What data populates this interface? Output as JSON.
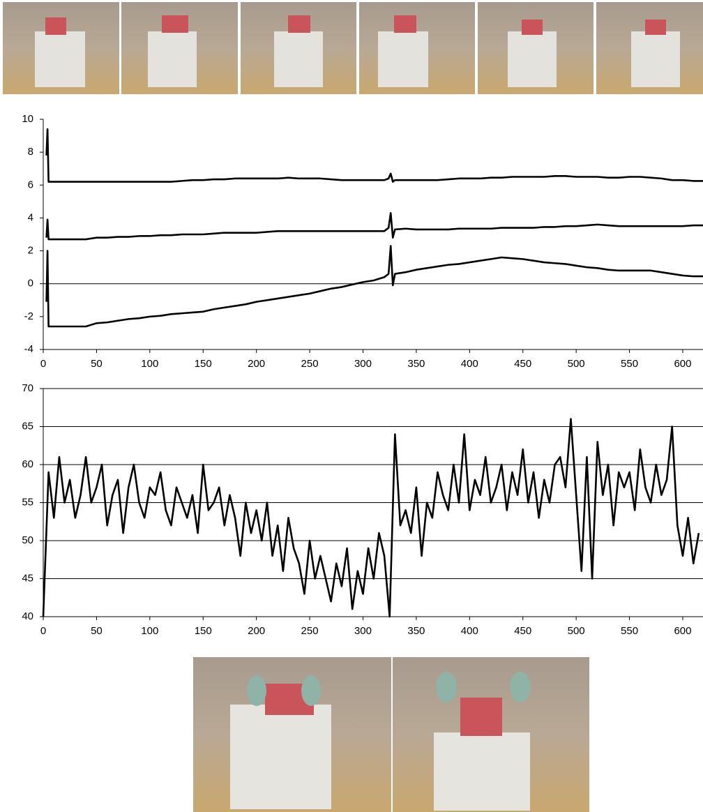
{
  "chart_data": [
    {
      "type": "line",
      "zero_line": true,
      "x": [
        3,
        4,
        5,
        6,
        10,
        20,
        30,
        40,
        50,
        60,
        70,
        80,
        90,
        100,
        110,
        120,
        130,
        140,
        150,
        160,
        170,
        180,
        190,
        200,
        210,
        220,
        230,
        240,
        250,
        260,
        270,
        280,
        290,
        300,
        310,
        320,
        324,
        326,
        328,
        330,
        340,
        350,
        360,
        370,
        380,
        390,
        400,
        410,
        420,
        430,
        440,
        450,
        460,
        470,
        480,
        490,
        500,
        510,
        520,
        530,
        540,
        550,
        560,
        570,
        580,
        590,
        600,
        610,
        619
      ],
      "series": [
        {
          "color": "#000000",
          "values": [
            7.8,
            9.4,
            6.2,
            6.2,
            6.2,
            6.2,
            6.2,
            6.2,
            6.2,
            6.2,
            6.2,
            6.2,
            6.2,
            6.2,
            6.2,
            6.2,
            6.25,
            6.3,
            6.3,
            6.35,
            6.35,
            6.4,
            6.4,
            6.4,
            6.4,
            6.4,
            6.45,
            6.4,
            6.4,
            6.4,
            6.35,
            6.3,
            6.3,
            6.3,
            6.3,
            6.3,
            6.4,
            6.7,
            6.2,
            6.3,
            6.3,
            6.3,
            6.3,
            6.3,
            6.35,
            6.4,
            6.4,
            6.4,
            6.45,
            6.45,
            6.5,
            6.5,
            6.5,
            6.5,
            6.55,
            6.55,
            6.5,
            6.5,
            6.5,
            6.45,
            6.45,
            6.5,
            6.5,
            6.45,
            6.4,
            6.3,
            6.3,
            6.25,
            6.25
          ]
        },
        {
          "color": "#000000",
          "values": [
            2.8,
            3.9,
            2.7,
            2.7,
            2.7,
            2.7,
            2.7,
            2.7,
            2.8,
            2.8,
            2.85,
            2.85,
            2.9,
            2.9,
            2.95,
            2.95,
            3.0,
            3.0,
            3.0,
            3.05,
            3.1,
            3.1,
            3.1,
            3.1,
            3.15,
            3.2,
            3.2,
            3.2,
            3.2,
            3.2,
            3.2,
            3.2,
            3.2,
            3.2,
            3.2,
            3.2,
            3.4,
            4.3,
            2.8,
            3.3,
            3.35,
            3.3,
            3.3,
            3.3,
            3.3,
            3.35,
            3.35,
            3.35,
            3.35,
            3.4,
            3.4,
            3.4,
            3.4,
            3.45,
            3.45,
            3.5,
            3.5,
            3.55,
            3.6,
            3.55,
            3.5,
            3.5,
            3.5,
            3.5,
            3.5,
            3.5,
            3.5,
            3.55,
            3.55
          ]
        },
        {
          "color": "#000000",
          "values": [
            -1.1,
            2.0,
            -2.6,
            -2.6,
            -2.6,
            -2.6,
            -2.6,
            -2.6,
            -2.4,
            -2.35,
            -2.25,
            -2.15,
            -2.1,
            -2.0,
            -1.95,
            -1.85,
            -1.8,
            -1.75,
            -1.7,
            -1.55,
            -1.45,
            -1.35,
            -1.25,
            -1.1,
            -1.0,
            -0.9,
            -0.8,
            -0.7,
            -0.6,
            -0.45,
            -0.3,
            -0.2,
            -0.05,
            0.1,
            0.2,
            0.4,
            0.6,
            2.3,
            -0.1,
            0.6,
            0.7,
            0.85,
            0.95,
            1.05,
            1.15,
            1.2,
            1.3,
            1.4,
            1.5,
            1.6,
            1.55,
            1.5,
            1.4,
            1.3,
            1.25,
            1.2,
            1.1,
            1.0,
            0.95,
            0.85,
            0.8,
            0.8,
            0.8,
            0.8,
            0.7,
            0.6,
            0.5,
            0.45,
            0.45
          ]
        }
      ],
      "xlim": [
        0,
        619
      ],
      "ylim": [
        -4,
        10
      ],
      "xticks": [
        0,
        50,
        100,
        150,
        200,
        250,
        300,
        350,
        400,
        450,
        500,
        550,
        600
      ],
      "yticks": [
        -4,
        -2,
        0,
        2,
        4,
        6,
        8,
        10
      ]
    },
    {
      "type": "line",
      "grid": true,
      "x": [
        0,
        5,
        10,
        15,
        20,
        25,
        30,
        35,
        40,
        45,
        50,
        55,
        60,
        65,
        70,
        75,
        80,
        85,
        90,
        95,
        100,
        105,
        110,
        115,
        120,
        125,
        130,
        135,
        140,
        145,
        150,
        155,
        160,
        165,
        170,
        175,
        180,
        185,
        190,
        195,
        200,
        205,
        210,
        215,
        220,
        225,
        230,
        235,
        240,
        245,
        250,
        255,
        260,
        265,
        270,
        275,
        280,
        285,
        290,
        295,
        300,
        305,
        310,
        315,
        320,
        325,
        330,
        335,
        340,
        345,
        350,
        355,
        360,
        365,
        370,
        375,
        380,
        385,
        390,
        395,
        400,
        405,
        410,
        415,
        420,
        425,
        430,
        435,
        440,
        445,
        450,
        455,
        460,
        465,
        470,
        475,
        480,
        485,
        490,
        495,
        500,
        505,
        510,
        515,
        520,
        525,
        530,
        535,
        540,
        545,
        550,
        555,
        560,
        565,
        570,
        575,
        580,
        585,
        590,
        595,
        600,
        605,
        610,
        615
      ],
      "series": [
        {
          "color": "#000000",
          "values": [
            40,
            59,
            53,
            61,
            55,
            58,
            53,
            56,
            61,
            55,
            57,
            60,
            52,
            56,
            58,
            51,
            57,
            60,
            55,
            53,
            57,
            56,
            59,
            54,
            52,
            57,
            55,
            53,
            56,
            51,
            60,
            54,
            55,
            57,
            52,
            56,
            53,
            48,
            55,
            51,
            54,
            50,
            55,
            48,
            52,
            46,
            53,
            49,
            47,
            43,
            50,
            45,
            48,
            45,
            42,
            47,
            44,
            49,
            41,
            46,
            43,
            49,
            45,
            51,
            48,
            40,
            64,
            52,
            54,
            51,
            57,
            48,
            55,
            53,
            59,
            56,
            54,
            60,
            55,
            64,
            54,
            58,
            56,
            61,
            55,
            57,
            60,
            54,
            59,
            56,
            62,
            55,
            59,
            53,
            58,
            55,
            60,
            61,
            57,
            66,
            56,
            46,
            61,
            45,
            63,
            56,
            60,
            52,
            59,
            57,
            59,
            54,
            62,
            57,
            55,
            60,
            56,
            58,
            65,
            52,
            48,
            53,
            47,
            51
          ]
        }
      ],
      "xlim": [
        0,
        619
      ],
      "ylim": [
        40,
        70
      ],
      "xticks": [
        0,
        50,
        100,
        150,
        200,
        250,
        300,
        350,
        400,
        450,
        500,
        550,
        600
      ],
      "yticks": [
        40,
        45,
        50,
        55,
        60,
        65,
        70
      ]
    }
  ]
}
